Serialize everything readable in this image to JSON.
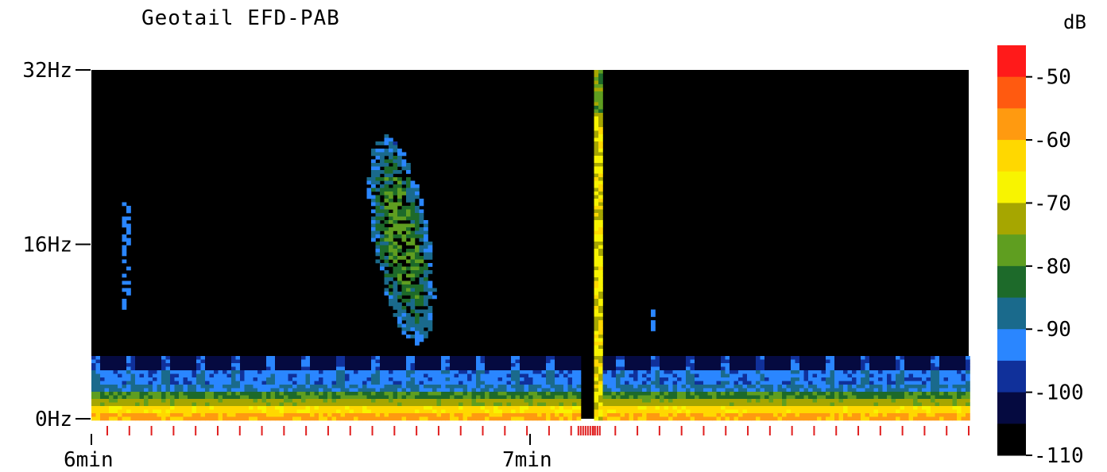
{
  "chart_data": {
    "type": "heatmap",
    "title": "Geotail  EFD-PAB",
    "colorbar_label": "dB",
    "y_axis": {
      "label": "",
      "range": [
        0,
        32
      ],
      "unit": "Hz",
      "ticks": [
        {
          "value": 32,
          "label": "32Hz"
        },
        {
          "value": 16,
          "label": "16Hz"
        },
        {
          "value": 0,
          "label": "0Hz"
        }
      ]
    },
    "x_axis": {
      "label": "",
      "range_min": [
        6.0,
        8.0
      ],
      "ticks": [
        {
          "value": 6,
          "label": "6min"
        },
        {
          "value": 7,
          "label": "7min"
        }
      ]
    },
    "colorbar": {
      "range_db": [
        -110,
        -45
      ],
      "ticks": [
        {
          "value": -50,
          "label": "-50"
        },
        {
          "value": -60,
          "label": "-60"
        },
        {
          "value": -70,
          "label": "-70"
        },
        {
          "value": -80,
          "label": "-80"
        },
        {
          "value": -90,
          "label": "-90"
        },
        {
          "value": -100,
          "label": "-100"
        },
        {
          "value": -110,
          "label": "-110"
        }
      ],
      "levels": [
        {
          "min": -50,
          "max": -45,
          "color": "#ff1a1a"
        },
        {
          "min": -55,
          "max": -50,
          "color": "#ff5a10"
        },
        {
          "min": -60,
          "max": -55,
          "color": "#ff9a10"
        },
        {
          "min": -65,
          "max": -60,
          "color": "#ffd800"
        },
        {
          "min": -70,
          "max": -65,
          "color": "#f8f400"
        },
        {
          "min": -75,
          "max": -70,
          "color": "#a6a600"
        },
        {
          "min": -80,
          "max": -75,
          "color": "#5f9e20"
        },
        {
          "min": -85,
          "max": -80,
          "color": "#1d6a2a"
        },
        {
          "min": -90,
          "max": -85,
          "color": "#1a6a8c"
        },
        {
          "min": -95,
          "max": -90,
          "color": "#2a86ff"
        },
        {
          "min": -100,
          "max": -95,
          "color": "#10309a"
        },
        {
          "min": -105,
          "max": -100,
          "color": "#050a40"
        },
        {
          "min": -110,
          "max": -105,
          "color": "#000000"
        }
      ]
    },
    "features": [
      {
        "desc": "emission band",
        "t_min": [
          6.62,
          6.82
        ],
        "f_hz": [
          8,
          25
        ],
        "level_db": [
          -95,
          -80
        ]
      },
      {
        "desc": "broadband burst",
        "t_min": 7.15,
        "f_hz": [
          0,
          32
        ],
        "level_db": [
          -75,
          -60
        ]
      },
      {
        "desc": "low-frequency background",
        "t_min": [
          6.0,
          8.0
        ],
        "f_hz": [
          0,
          5
        ],
        "level_db": [
          -100,
          -60
        ]
      }
    ],
    "red_tick_count": 40,
    "grid": false,
    "legend": "colorbar-right"
  }
}
